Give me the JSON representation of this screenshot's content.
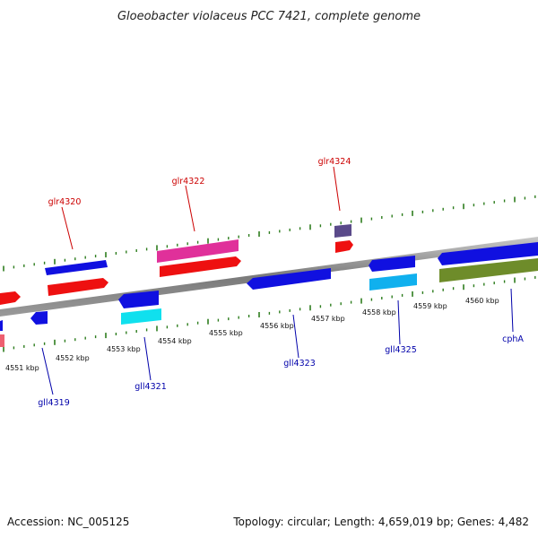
{
  "title": "Gloeobacter violaceus PCC 7421, complete genome",
  "footer": {
    "accession": "Accession: NC_005125",
    "stats": "Topology: circular; Length: 4,659,019 bp; Genes: 4,482"
  },
  "tick_labels": [
    "4551 kbp",
    "4552 kbp",
    "4553 kbp",
    "4554 kbp",
    "4555 kbp",
    "4556 kbp",
    "4557 kbp",
    "4558 kbp",
    "4559 kbp",
    "4560 kbp"
  ],
  "colors": {
    "forward_label": "#cc0000",
    "reverse_label": "#0000aa",
    "backbone": "#888888",
    "tick": "#2e7d1e"
  },
  "genes": {
    "forward_labeled": [
      "glr4320",
      "glr4322",
      "glr4324"
    ],
    "reverse_labeled": [
      "gll4319",
      "gll4321",
      "gll4323",
      "gll4325",
      "cphA"
    ]
  }
}
